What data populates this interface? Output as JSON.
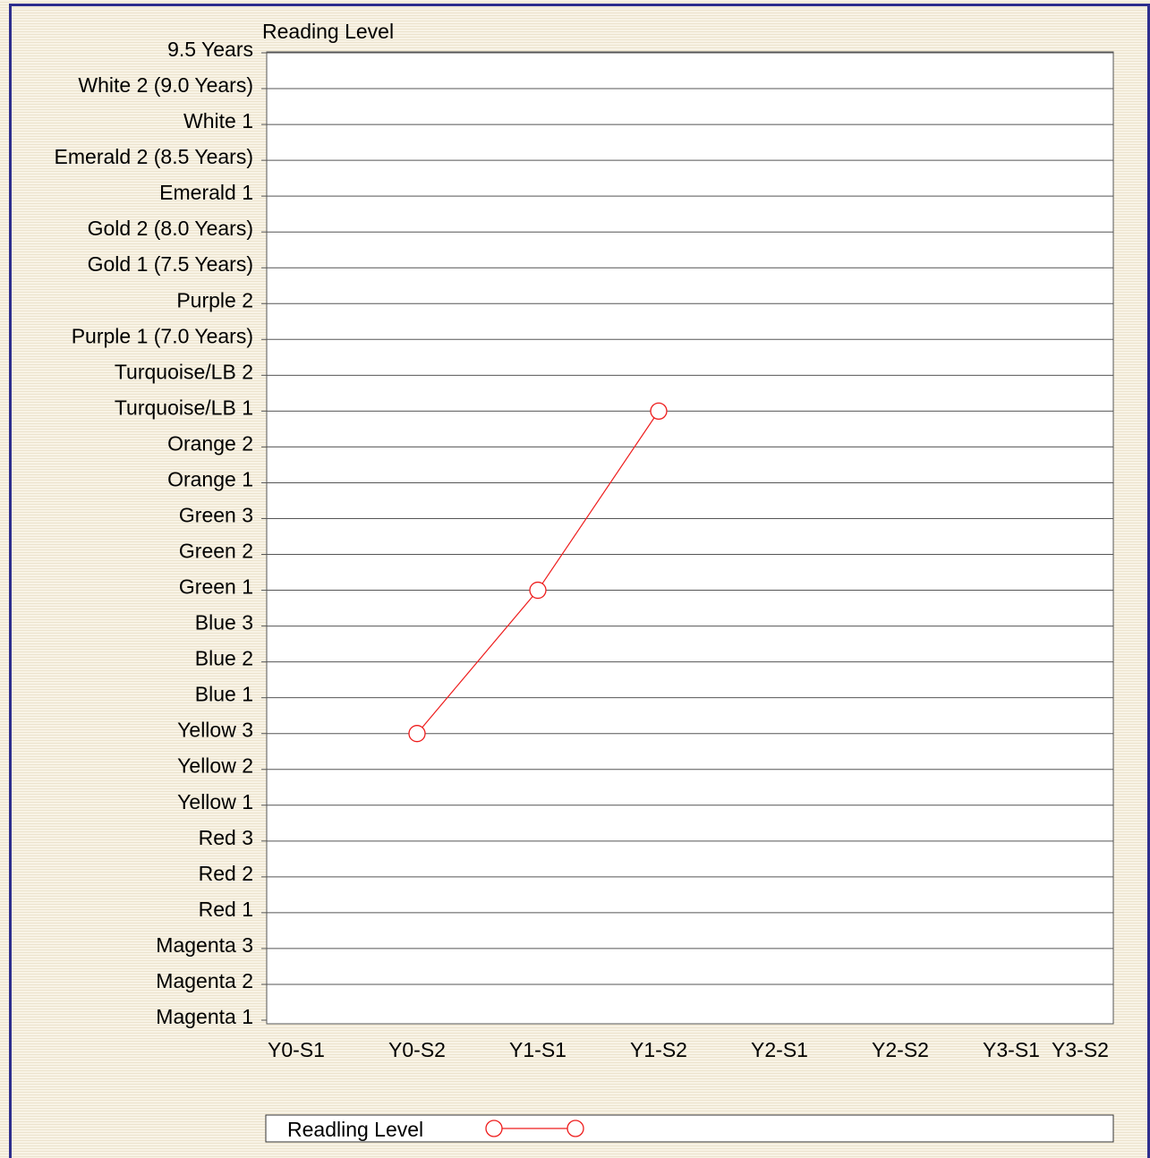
{
  "chart_data": {
    "type": "line",
    "title": "Reading Level",
    "y_levels": [
      "Magenta 1",
      "Magenta 2",
      "Magenta 3",
      "Red 1",
      "Red 2",
      "Red 3",
      "Yellow 1",
      "Yellow 2",
      "Yellow 3",
      "Blue 1",
      "Blue 2",
      "Blue 3",
      "Green 1",
      "Green 2",
      "Green 3",
      "Orange 1",
      "Orange 2",
      "Turquoise/LB 1",
      "Turquoise/LB 2",
      "Purple 1 (7.0 Years)",
      "Purple 2",
      "Gold 1 (7.5 Years)",
      "Gold 2 (8.0 Years)",
      "Emerald 1",
      "Emerald 2 (8.5 Years)",
      "White 1",
      "White 2 (9.0 Years)",
      "9.5 Years"
    ],
    "categories": [
      "Y0-S1",
      "Y0-S2",
      "Y1-S1",
      "Y1-S2",
      "Y2-S1",
      "Y2-S2",
      "Y3-S1",
      "Y3-S2"
    ],
    "series": [
      {
        "name": "Readling Level",
        "color": "#ee1c1c",
        "points": [
          {
            "x": "Y0-S2",
            "y": "Yellow 3"
          },
          {
            "x": "Y1-S1",
            "y": "Green 1"
          },
          {
            "x": "Y1-S2",
            "y": "Turquoise/LB 1"
          }
        ]
      }
    ],
    "grid": true,
    "legend_position": "bottom",
    "colors": {
      "frame": "#2e2e8e",
      "grid": "#555555",
      "series": "#ee1c1c"
    }
  }
}
